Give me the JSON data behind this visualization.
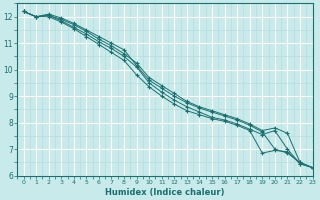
{
  "xlabel": "Humidex (Indice chaleur)",
  "ylabel": "",
  "bg_color": "#c8eaea",
  "line_color": "#1a7070",
  "grid_major_color": "#ffffff",
  "grid_minor_color": "#b8dcdc",
  "xlim": [
    -0.5,
    23
  ],
  "ylim": [
    6.0,
    12.5
  ],
  "xticks": [
    0,
    1,
    2,
    3,
    4,
    5,
    6,
    7,
    8,
    9,
    10,
    11,
    12,
    13,
    14,
    15,
    16,
    17,
    18,
    19,
    20,
    21,
    22,
    23
  ],
  "yticks": [
    6,
    7,
    8,
    9,
    10,
    11,
    12
  ],
  "lines": [
    [
      12.2,
      12.0,
      12.1,
      11.95,
      11.75,
      11.5,
      11.25,
      11.0,
      10.75,
      10.15,
      9.6,
      9.3,
      9.0,
      8.75,
      8.55,
      8.4,
      8.25,
      8.1,
      7.9,
      7.65,
      7.0,
      6.85,
      6.5,
      6.3
    ],
    [
      12.2,
      12.0,
      12.05,
      11.85,
      11.6,
      11.35,
      11.05,
      10.8,
      10.5,
      10.1,
      9.5,
      9.15,
      8.85,
      8.6,
      8.4,
      8.2,
      8.1,
      7.95,
      7.75,
      7.55,
      7.7,
      7.0,
      6.45,
      6.3
    ],
    [
      12.2,
      12.0,
      12.0,
      11.8,
      11.55,
      11.25,
      10.95,
      10.65,
      10.35,
      9.8,
      9.35,
      9.0,
      8.7,
      8.45,
      8.3,
      8.15,
      8.05,
      7.9,
      7.7,
      6.85,
      6.95,
      6.9,
      6.45,
      6.3
    ],
    [
      12.2,
      12.0,
      12.05,
      11.9,
      11.7,
      11.45,
      11.15,
      10.9,
      10.6,
      10.25,
      9.7,
      9.4,
      9.1,
      8.8,
      8.6,
      8.45,
      8.3,
      8.15,
      7.95,
      7.7,
      7.8,
      7.6,
      6.5,
      6.3
    ]
  ]
}
